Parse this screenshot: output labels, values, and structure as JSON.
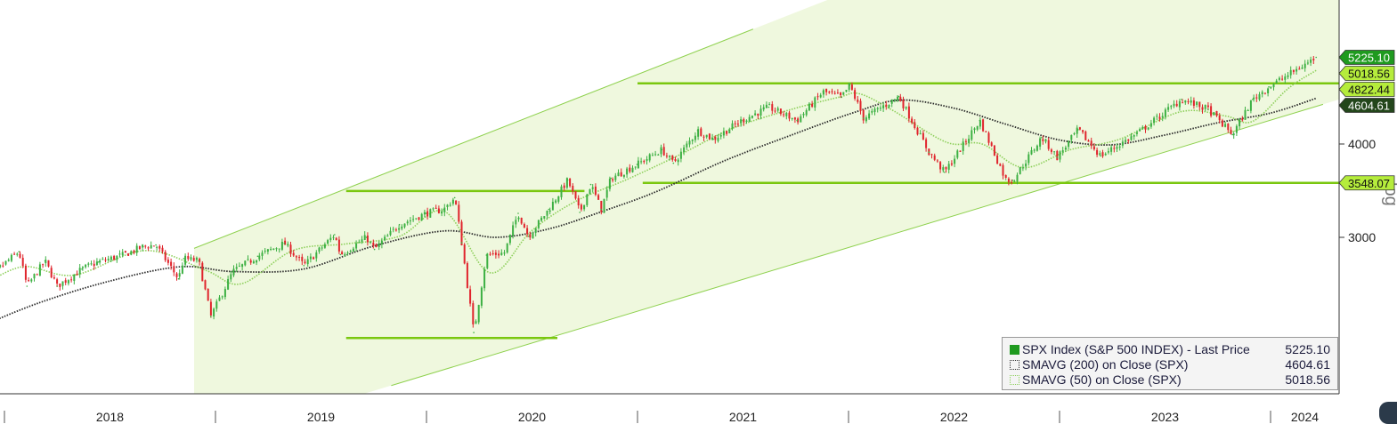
{
  "chart_data": {
    "type": "line",
    "title": "",
    "scale": "log",
    "ylim": [
      1900,
      5700
    ],
    "y_ticks": [
      {
        "value": 3000,
        "label": "3000"
      },
      {
        "value": 4000,
        "label": "4000"
      }
    ],
    "x_axis_years": [
      "2018",
      "2019",
      "2020",
      "2021",
      "2022",
      "2023",
      "2024"
    ],
    "y_axis_scale_label": "log",
    "series": [
      {
        "name": "SPX Index (S&P 500 INDEX) - Last Price",
        "style": "candlestick",
        "last_value": "5225.10",
        "x": [
          "2017-11-15",
          "2018-01-26",
          "2018-02-09",
          "2018-03-12",
          "2018-04-02",
          "2018-05-15",
          "2018-06-12",
          "2018-07-25",
          "2018-08-29",
          "2018-09-20",
          "2018-10-29",
          "2018-11-07",
          "2018-12-03",
          "2018-12-24",
          "2019-01-31",
          "2019-03-15",
          "2019-04-30",
          "2019-06-03",
          "2019-07-26",
          "2019-08-05",
          "2019-09-19",
          "2019-10-03",
          "2019-11-15",
          "2019-12-31",
          "2020-01-31",
          "2020-02-19",
          "2020-03-02",
          "2020-03-23",
          "2020-04-14",
          "2020-05-15",
          "2020-06-08",
          "2020-06-26",
          "2020-07-31",
          "2020-09-02",
          "2020-09-23",
          "2020-10-12",
          "2020-10-30",
          "2020-11-16",
          "2020-12-31",
          "2021-02-12",
          "2021-03-04",
          "2021-04-15",
          "2021-05-12",
          "2021-06-30",
          "2021-08-16",
          "2021-10-04",
          "2021-11-18",
          "2021-12-20",
          "2022-01-03",
          "2022-01-27",
          "2022-03-29",
          "2022-05-20",
          "2022-06-16",
          "2022-08-16",
          "2022-09-30",
          "2022-10-12",
          "2022-12-01",
          "2022-12-28",
          "2023-02-02",
          "2023-03-13",
          "2023-05-15",
          "2023-07-31",
          "2023-09-15",
          "2023-10-27",
          "2023-12-01",
          "2023-12-29",
          "2024-02-15",
          "2024-03-20"
        ],
        "values": [
          2580,
          2870,
          2580,
          2790,
          2580,
          2720,
          2780,
          2840,
          2915,
          2930,
          2640,
          2810,
          2790,
          2350,
          2700,
          2830,
          2945,
          2750,
          3025,
          2845,
          3000,
          2890,
          3120,
          3230,
          3270,
          3390,
          2950,
          2237,
          2840,
          2860,
          3230,
          3010,
          3270,
          3580,
          3240,
          3530,
          3270,
          3600,
          3756,
          3930,
          3770,
          4170,
          4060,
          4300,
          4480,
          4300,
          4700,
          4620,
          4796,
          4330,
          4630,
          3900,
          3666,
          4300,
          3585,
          3577,
          4080,
          3840,
          4180,
          3855,
          4130,
          4590,
          4450,
          4117,
          4590,
          4770,
          5030,
          5225
        ]
      },
      {
        "name": "SMAVG (200)  on Close (SPX)",
        "style": "dotted",
        "last_value": "4604.61",
        "x": [
          "2017-11-15",
          "2018-03-01",
          "2018-07-01",
          "2018-11-01",
          "2019-02-01",
          "2019-06-01",
          "2019-10-01",
          "2020-02-01",
          "2020-05-01",
          "2020-08-01",
          "2020-11-01",
          "2021-02-01",
          "2021-06-01",
          "2021-10-01",
          "2022-01-15",
          "2022-04-01",
          "2022-07-01",
          "2022-10-01",
          "2023-01-01",
          "2023-04-01",
          "2023-07-01",
          "2023-10-01",
          "2024-01-01",
          "2024-03-20"
        ],
        "values": [
          2270,
          2450,
          2620,
          2740,
          2700,
          2720,
          2920,
          3060,
          3000,
          3080,
          3250,
          3450,
          3800,
          4130,
          4420,
          4580,
          4470,
          4250,
          4050,
          3990,
          4110,
          4270,
          4400,
          4604.61
        ]
      },
      {
        "name": "SMAVG (50)  on Close (SPX)",
        "style": "dotted",
        "last_value": "5018.56",
        "x": [
          "2017-11-15",
          "2018-02-01",
          "2018-05-01",
          "2018-09-01",
          "2018-12-15",
          "2019-02-15",
          "2019-05-15",
          "2019-08-15",
          "2019-11-15",
          "2020-02-01",
          "2020-04-20",
          "2020-07-01",
          "2020-09-15",
          "2020-12-15",
          "2021-03-15",
          "2021-06-15",
          "2021-09-15",
          "2021-12-15",
          "2022-01-20",
          "2022-03-20",
          "2022-06-20",
          "2022-08-20",
          "2022-10-30",
          "2023-01-20",
          "2023-04-15",
          "2023-07-30",
          "2023-10-15",
          "2023-12-01",
          "2024-02-01",
          "2024-03-20"
        ],
        "values": [
          2560,
          2740,
          2670,
          2880,
          2710,
          2600,
          2880,
          2940,
          3010,
          3250,
          2690,
          3060,
          3350,
          3590,
          3870,
          4200,
          4430,
          4620,
          4670,
          4430,
          4020,
          4000,
          3720,
          3930,
          4060,
          4420,
          4360,
          4290,
          4750,
          5018.56
        ]
      }
    ],
    "levels": [
      {
        "label": "4822.44",
        "value": 4822.44,
        "x_start": "2021-01-01"
      },
      {
        "label": "3548.07",
        "value": 3548.07,
        "x_start": "2021-01-10"
      },
      {
        "label": "",
        "value": 3460,
        "x_start": "2019-08-15",
        "x_end": "2020-10-01"
      },
      {
        "label": "",
        "value": 2200,
        "x_start": "2019-08-15",
        "x_end": "2020-08-15"
      }
    ],
    "channel": {
      "upper": [
        {
          "x": "2018-11-25",
          "y": 2900
        },
        {
          "x": "2021-07-20",
          "y": 5700
        }
      ],
      "lower": [
        {
          "x": "2019-11-01",
          "y": 1900
        },
        {
          "x": "2024-04-01",
          "y": 4520
        }
      ],
      "fill_start": "2018-11-25"
    },
    "price_tags": [
      {
        "label": "5225.10",
        "value": 5225.1,
        "style": "dark-green"
      },
      {
        "label": "5018.56",
        "value": 5018.56,
        "style": "light-green"
      },
      {
        "label": "4822.44",
        "value": 4822.44,
        "style": "light-green"
      },
      {
        "label": "4604.61",
        "value": 4604.61,
        "style": "dark"
      },
      {
        "label": "3548.07",
        "value": 3548.07,
        "style": "light-green"
      }
    ],
    "colors": {
      "up": "#3cb043",
      "down": "#e0242c",
      "level_line": "#7ac70f",
      "channel_line": "#8fd14f",
      "channel_fill": "#eff8de",
      "sma200": "#2a2a2a",
      "sma50": "#8dcf5a",
      "tag_dark_green": "#1f9a1f",
      "tag_light_green": "#b5ec3c",
      "tag_dark": "#23461b"
    },
    "legend": {
      "items": [
        {
          "label": "SPX Index (S&P 500 INDEX) - Last Price",
          "value": "5225.10",
          "swatch": "solid-green"
        },
        {
          "label": "SMAVG (200)  on Close (SPX)",
          "value": "4604.61",
          "swatch": "dotted-dark"
        },
        {
          "label": "SMAVG (50)  on Close (SPX)",
          "value": "5018.56",
          "swatch": "dotted-green"
        }
      ],
      "placement": "bottom-right"
    }
  }
}
